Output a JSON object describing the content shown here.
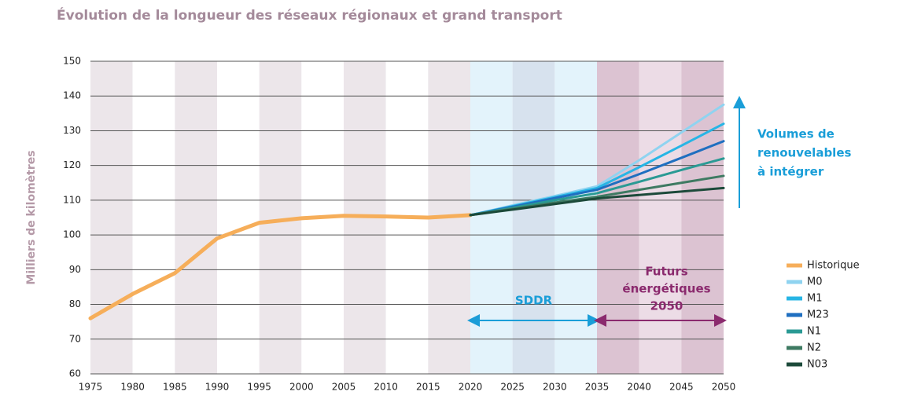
{
  "chart_data": {
    "type": "line",
    "title": "Évolution de la longueur des réseaux régionaux et grand transport",
    "y_label": "Milliers de kilomètres",
    "x": [
      1975,
      1980,
      1985,
      1990,
      1995,
      2000,
      2005,
      2010,
      2015,
      2020,
      2025,
      2030,
      2035,
      2040,
      2045,
      2050
    ],
    "series": [
      {
        "name": "Historique",
        "color": "#f6ae5a",
        "values": [
          76,
          83,
          89,
          99,
          103.5,
          104.8,
          105.5,
          105.3,
          105,
          105.7,
          null,
          null,
          null,
          null,
          null,
          null
        ]
      },
      {
        "name": "M0",
        "color": "#8fd3f0",
        "values": [
          null,
          null,
          null,
          null,
          null,
          null,
          null,
          null,
          null,
          105.7,
          108.5,
          111.2,
          114,
          121.5,
          129.5,
          137.5
        ]
      },
      {
        "name": "M1",
        "color": "#27b5e5",
        "values": [
          null,
          null,
          null,
          null,
          null,
          null,
          null,
          null,
          null,
          105.7,
          108.3,
          110.9,
          113.5,
          119.5,
          125.7,
          132
        ]
      },
      {
        "name": "M23",
        "color": "#1f6fc0",
        "values": [
          null,
          null,
          null,
          null,
          null,
          null,
          null,
          null,
          null,
          105.7,
          108.1,
          110.6,
          113,
          117.5,
          122.2,
          127
        ]
      },
      {
        "name": "N1",
        "color": "#2a9a94",
        "values": [
          null,
          null,
          null,
          null,
          null,
          null,
          null,
          null,
          null,
          105.7,
          107.8,
          110,
          112,
          115.3,
          118.7,
          122
        ]
      },
      {
        "name": "N2",
        "color": "#3e7a62",
        "values": [
          null,
          null,
          null,
          null,
          null,
          null,
          null,
          null,
          null,
          105.7,
          107.5,
          109.3,
          111,
          113,
          115,
          117
        ]
      },
      {
        "name": "N03",
        "color": "#1c4a3a",
        "values": [
          null,
          null,
          null,
          null,
          null,
          null,
          null,
          null,
          null,
          105.7,
          107.3,
          108.9,
          110.5,
          111.5,
          112.5,
          113.5
        ]
      }
    ],
    "xlim": [
      1975,
      2050
    ],
    "xticks": [
      1975,
      1980,
      1985,
      1990,
      1995,
      2000,
      2005,
      2010,
      2015,
      2020,
      2025,
      2030,
      2035,
      2040,
      2045,
      2050
    ],
    "ylim": [
      60,
      150
    ],
    "yticks": [
      60,
      70,
      80,
      90,
      100,
      110,
      120,
      130,
      140,
      150
    ],
    "grid": true,
    "legend": "right",
    "annotations": [
      {
        "text": [
          "Volumes de",
          "renouvelables",
          "à intégrer"
        ],
        "color": "#1a9ed8"
      },
      {
        "text": [
          "SDDR"
        ],
        "color": "#1a9ed8"
      },
      {
        "text": [
          "Futurs",
          "énergétiques",
          "2050"
        ],
        "color": "#8b2a6e"
      }
    ]
  }
}
